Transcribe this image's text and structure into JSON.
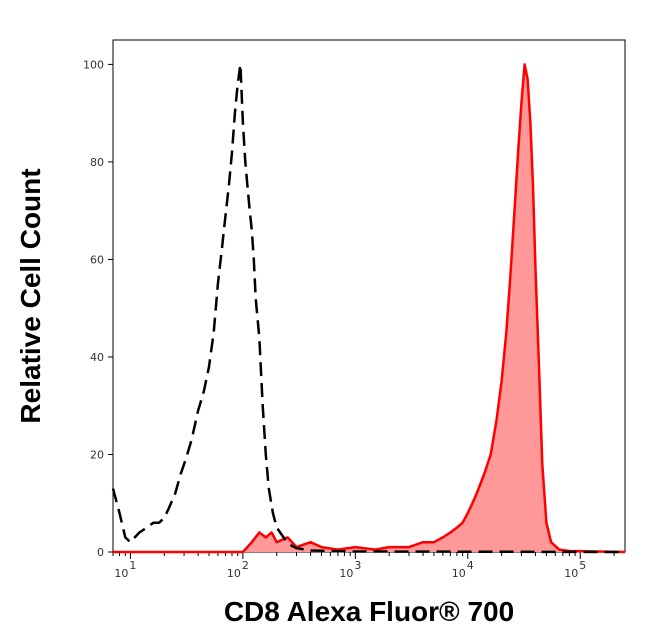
{
  "chart_data": {
    "type": "area",
    "xlabel": "CD8 Alexa Fluor® 700",
    "ylabel": "Relative Cell Count",
    "x_scale": "log",
    "xlim": [
      7,
      250000
    ],
    "ylim": [
      0,
      105
    ],
    "y_ticks": [
      "0",
      "20",
      "40",
      "60",
      "80",
      "100"
    ],
    "x_ticks": [
      {
        "base": "10",
        "exp": "1",
        "value": 10
      },
      {
        "base": "10",
        "exp": "2",
        "value": 100
      },
      {
        "base": "10",
        "exp": "3",
        "value": 1000
      },
      {
        "base": "10",
        "exp": "4",
        "value": 10000
      },
      {
        "base": "10",
        "exp": "5",
        "value": 100000
      }
    ],
    "grid": false,
    "legend": "none",
    "series": [
      {
        "style": "dashed",
        "color": "#000000",
        "points": [
          [
            7,
            13
          ],
          [
            8,
            8
          ],
          [
            9,
            3
          ],
          [
            10,
            2
          ],
          [
            12,
            4
          ],
          [
            14,
            5
          ],
          [
            16,
            6
          ],
          [
            18,
            6
          ],
          [
            20,
            7
          ],
          [
            22,
            9
          ],
          [
            25,
            12
          ],
          [
            28,
            16
          ],
          [
            31,
            19
          ],
          [
            35,
            23
          ],
          [
            40,
            29
          ],
          [
            45,
            33
          ],
          [
            50,
            38
          ],
          [
            55,
            45
          ],
          [
            60,
            55
          ],
          [
            65,
            62
          ],
          [
            70,
            69
          ],
          [
            75,
            75
          ],
          [
            80,
            82
          ],
          [
            85,
            90
          ],
          [
            90,
            96
          ],
          [
            95,
            100
          ],
          [
            100,
            88
          ],
          [
            105,
            80
          ],
          [
            110,
            75
          ],
          [
            115,
            70
          ],
          [
            120,
            66
          ],
          [
            125,
            60
          ],
          [
            130,
            52
          ],
          [
            140,
            44
          ],
          [
            150,
            30
          ],
          [
            160,
            20
          ],
          [
            170,
            13
          ],
          [
            185,
            8
          ],
          [
            200,
            5
          ],
          [
            230,
            3
          ],
          [
            260,
            1.5
          ],
          [
            300,
            0.8
          ],
          [
            400,
            0.3
          ],
          [
            1000,
            0.1
          ],
          [
            250000,
            0
          ]
        ]
      },
      {
        "style": "filled",
        "color": "#ff0000",
        "fill": "#ff9999",
        "points": [
          [
            7,
            0
          ],
          [
            100,
            0
          ],
          [
            120,
            2
          ],
          [
            140,
            4
          ],
          [
            160,
            3
          ],
          [
            180,
            4
          ],
          [
            200,
            2
          ],
          [
            250,
            3
          ],
          [
            300,
            1
          ],
          [
            400,
            2
          ],
          [
            500,
            1
          ],
          [
            700,
            0.5
          ],
          [
            1000,
            1
          ],
          [
            1500,
            0.5
          ],
          [
            2000,
            1
          ],
          [
            3000,
            1
          ],
          [
            4000,
            2
          ],
          [
            5000,
            2
          ],
          [
            6000,
            3
          ],
          [
            7000,
            4
          ],
          [
            8000,
            5
          ],
          [
            9000,
            6
          ],
          [
            10000,
            8
          ],
          [
            11000,
            10
          ],
          [
            12000,
            12
          ],
          [
            14000,
            16
          ],
          [
            16000,
            20
          ],
          [
            18000,
            27
          ],
          [
            20000,
            35
          ],
          [
            22000,
            45
          ],
          [
            24000,
            57
          ],
          [
            26000,
            70
          ],
          [
            28000,
            82
          ],
          [
            30000,
            92
          ],
          [
            32000,
            100
          ],
          [
            34000,
            97
          ],
          [
            36000,
            88
          ],
          [
            38000,
            75
          ],
          [
            40000,
            58
          ],
          [
            43000,
            38
          ],
          [
            46000,
            18
          ],
          [
            50000,
            6
          ],
          [
            55000,
            2
          ],
          [
            65000,
            0.5
          ],
          [
            80000,
            0.2
          ],
          [
            250000,
            0
          ]
        ]
      }
    ]
  }
}
